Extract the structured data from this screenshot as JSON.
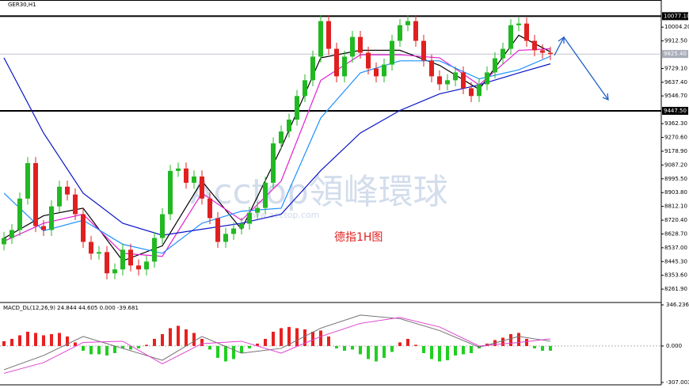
{
  "chart_data": {
    "type": "candlestick",
    "title": "GER30,H1",
    "annotation": "德指1H图",
    "watermark": "Acctop領峰環球",
    "watermark_url": "www.acctop.com",
    "up_color": "#22b822",
    "down_color": "#e02020",
    "ylim": [
      8173,
      10174
    ],
    "yticks": [
      {
        "value": 10004.2,
        "label": "10004.20"
      },
      {
        "value": 9912.5,
        "label": "9912.50"
      },
      {
        "value": 9729.1,
        "label": "9729.10"
      },
      {
        "value": 9637.4,
        "label": "9637.40"
      },
      {
        "value": 9546.7,
        "label": "9546.70"
      },
      {
        "value": 9362.3,
        "label": "9362.30"
      },
      {
        "value": 9270.6,
        "label": "9270.60"
      },
      {
        "value": 9178.9,
        "label": "9178.90"
      },
      {
        "value": 9087.2,
        "label": "9087.20"
      },
      {
        "value": 8995.5,
        "label": "8995.50"
      },
      {
        "value": 8903.8,
        "label": "8903.80"
      },
      {
        "value": 8812.1,
        "label": "8812.10"
      },
      {
        "value": 8720.4,
        "label": "8720.40"
      },
      {
        "value": 8628.7,
        "label": "8628.70"
      },
      {
        "value": 8537,
        "label": "8537.00"
      },
      {
        "value": 8445.3,
        "label": "8445.30"
      },
      {
        "value": 8353.6,
        "label": "8353.60"
      },
      {
        "value": 8261.9,
        "label": "8261.90"
      }
    ],
    "levels": [
      {
        "value": 10077.1,
        "label": "10077.10"
      },
      {
        "value": 9447.5,
        "label": "9447.50"
      }
    ],
    "current_price": {
      "value": 9825.4,
      "label": "9825.40"
    },
    "open": [
      8560,
      8602,
      8655,
      8864,
      9100,
      8681,
      8655,
      8812,
      8943,
      8891,
      8760,
      8576,
      8498,
      8508,
      8367,
      8393,
      8524,
      8419,
      8393,
      8445,
      8602,
      8760,
      9048,
      9064,
      8969,
      9011,
      8864,
      8734,
      8576,
      8629,
      8665,
      8697,
      8770,
      8802,
      8969,
      9231,
      9310,
      9389,
      9546,
      9651,
      9808,
      10044,
      9860,
      9677,
      9808,
      9939,
      9834,
      9729,
      9677,
      9755,
      9913,
      10017,
      10044,
      9913,
      9782,
      9677,
      9624,
      9651,
      9703,
      9598,
      9546,
      9624,
      9703,
      9797,
      9860,
      10017,
      10028,
      9913,
      9850,
      9834
    ],
    "high": [
      8642,
      8695,
      8904,
      9140,
      9140,
      8721,
      8852,
      8983,
      8983,
      8931,
      8800,
      8616,
      8548,
      8548,
      8433,
      8564,
      8564,
      8459,
      8485,
      8642,
      8800,
      9088,
      9104,
      9104,
      9051,
      9051,
      8904,
      8774,
      8669,
      8705,
      8737,
      8810,
      8842,
      9009,
      9271,
      9350,
      9429,
      9586,
      9691,
      9848,
      10084,
      10084,
      9900,
      9848,
      9979,
      9979,
      9874,
      9769,
      9795,
      9953,
      10057,
      10084,
      10084,
      9953,
      9822,
      9717,
      9691,
      9743,
      9743,
      9638,
      9664,
      9743,
      9837,
      9900,
      10057,
      10068,
      10068,
      9953,
      9890,
      9874
    ],
    "low": [
      8520,
      8562,
      8615,
      8824,
      8641,
      8615,
      8615,
      8772,
      8851,
      8720,
      8536,
      8458,
      8458,
      8327,
      8327,
      8353,
      8379,
      8353,
      8353,
      8405,
      8562,
      8720,
      9008,
      8929,
      8929,
      8824,
      8694,
      8536,
      8536,
      8589,
      8625,
      8657,
      8730,
      8762,
      8929,
      9191,
      9270,
      9349,
      9506,
      9611,
      9768,
      9820,
      9637,
      9637,
      9768,
      9794,
      9689,
      9637,
      9637,
      9715,
      9873,
      9977,
      9873,
      9742,
      9637,
      9584,
      9584,
      9611,
      9558,
      9506,
      9506,
      9584,
      9663,
      9757,
      9820,
      9977,
      9873,
      9810,
      9794,
      9785
    ],
    "close": [
      8602,
      8655,
      8864,
      9100,
      8681,
      8655,
      8812,
      8943,
      8891,
      8760,
      8576,
      8498,
      8508,
      8367,
      8393,
      8524,
      8419,
      8393,
      8445,
      8602,
      8760,
      9048,
      9064,
      8969,
      9011,
      8864,
      8734,
      8576,
      8629,
      8665,
      8697,
      8770,
      8802,
      8969,
      9231,
      9310,
      9389,
      9546,
      9651,
      9808,
      10044,
      9860,
      9677,
      9808,
      9939,
      9834,
      9729,
      9677,
      9755,
      9913,
      10017,
      10044,
      9913,
      9782,
      9677,
      9624,
      9651,
      9703,
      9598,
      9546,
      9624,
      9703,
      9797,
      9860,
      10017,
      10028,
      9913,
      9850,
      9834,
      9825
    ],
    "moving_averages": [
      {
        "color": "#000000",
        "x": [
          0,
          5,
          10,
          15,
          20,
          25,
          30,
          35,
          40,
          45,
          50,
          55,
          60,
          65,
          69
        ],
        "values": [
          8600,
          8750,
          8800,
          8450,
          8550,
          8980,
          8660,
          9200,
          9800,
          9850,
          9850,
          9750,
          9590,
          9950,
          9840
        ]
      },
      {
        "color": "#e020d0",
        "x": [
          0,
          5,
          10,
          15,
          20,
          25,
          30,
          35,
          40,
          45,
          50,
          55,
          60,
          65,
          69
        ],
        "values": [
          8580,
          8700,
          8760,
          8500,
          8480,
          8900,
          8720,
          8980,
          9650,
          9820,
          9820,
          9800,
          9620,
          9850,
          9860
        ]
      },
      {
        "color": "#1e90ff",
        "x": [
          0,
          5,
          10,
          15,
          20,
          25,
          30,
          35,
          40,
          45,
          50,
          55,
          60,
          65,
          69
        ],
        "values": [
          8900,
          8650,
          8720,
          8560,
          8500,
          8700,
          8780,
          8800,
          9400,
          9700,
          9780,
          9780,
          9660,
          9720,
          9810
        ]
      },
      {
        "color": "#0a14c8",
        "x": [
          0,
          5,
          10,
          15,
          20,
          25,
          30,
          35,
          40,
          45,
          50,
          55,
          60,
          65,
          69
        ],
        "values": [
          9800,
          9300,
          8900,
          8700,
          8620,
          8660,
          8700,
          8760,
          9050,
          9300,
          9450,
          9560,
          9620,
          9700,
          9760
        ]
      }
    ],
    "macd": {
      "title": "MACD_DL(12,26,9) 24.844 44.605 0.000 -39.681",
      "ylim": [
        -307.003,
        346.236
      ],
      "yticks": [
        346.236,
        {
          "value": 0,
          "label": "0.000"
        },
        -307.003
      ],
      "up_color": "#e82020",
      "down_color": "#20d020",
      "histogram": [
        40,
        60,
        90,
        120,
        110,
        90,
        100,
        110,
        80,
        30,
        -40,
        -70,
        -70,
        -80,
        -60,
        -20,
        -30,
        -20,
        10,
        60,
        100,
        150,
        170,
        140,
        110,
        60,
        -30,
        -100,
        -130,
        -110,
        -60,
        -20,
        20,
        60,
        120,
        150,
        160,
        150,
        140,
        120,
        130,
        80,
        -20,
        -40,
        -30,
        -70,
        -110,
        -130,
        -100,
        -50,
        30,
        60,
        10,
        -60,
        -110,
        -130,
        -120,
        -80,
        -70,
        -60,
        -20,
        20,
        50,
        70,
        100,
        110,
        60,
        -20,
        -40,
        -40
      ],
      "lines": [
        {
          "color": "#707070",
          "x": [
            0,
            5,
            10,
            15,
            20,
            25,
            30,
            35,
            40,
            45,
            50,
            55,
            60,
            65,
            69
          ],
          "values": [
            -200,
            -80,
            80,
            -20,
            -120,
            80,
            -60,
            -20,
            150,
            260,
            230,
            130,
            -10,
            80,
            40
          ]
        },
        {
          "color": "#e040d0",
          "x": [
            0,
            5,
            10,
            15,
            20,
            25,
            30,
            35,
            40,
            45,
            50,
            55,
            60,
            65,
            69
          ],
          "values": [
            -230,
            -140,
            30,
            40,
            -150,
            20,
            40,
            -60,
            80,
            190,
            240,
            160,
            0,
            30,
            60
          ]
        }
      ]
    }
  }
}
